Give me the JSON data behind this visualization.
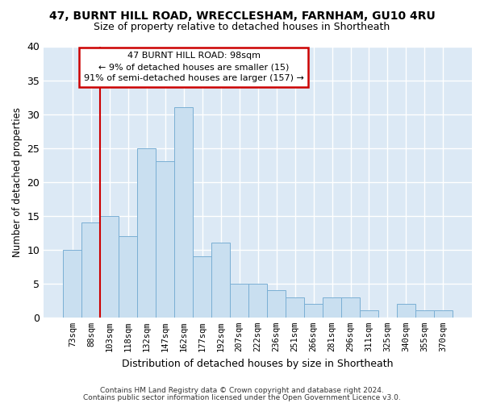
{
  "title1": "47, BURNT HILL ROAD, WRECCLESHAM, FARNHAM, GU10 4RU",
  "title2": "Size of property relative to detached houses in Shortheath",
  "xlabel": "Distribution of detached houses by size in Shortheath",
  "ylabel": "Number of detached properties",
  "categories": [
    "73sqm",
    "88sqm",
    "103sqm",
    "118sqm",
    "132sqm",
    "147sqm",
    "162sqm",
    "177sqm",
    "192sqm",
    "207sqm",
    "222sqm",
    "236sqm",
    "251sqm",
    "266sqm",
    "281sqm",
    "296sqm",
    "311sqm",
    "325sqm",
    "340sqm",
    "355sqm",
    "370sqm"
  ],
  "values": [
    10,
    14,
    15,
    12,
    25,
    23,
    31,
    9,
    11,
    5,
    5,
    4,
    3,
    2,
    3,
    3,
    1,
    0,
    2,
    1,
    1
  ],
  "bar_color": "#c9dff0",
  "bar_edge_color": "#7aafd4",
  "vline_x_index": 2,
  "vline_color": "#cc0000",
  "annotation_lines": [
    "47 BURNT HILL ROAD: 98sqm",
    "← 9% of detached houses are smaller (15)",
    "91% of semi-detached houses are larger (157) →"
  ],
  "annotation_box_color": "#ffffff",
  "annotation_box_edge_color": "#cc0000",
  "ylim": [
    0,
    40
  ],
  "yticks": [
    0,
    5,
    10,
    15,
    20,
    25,
    30,
    35,
    40
  ],
  "ax_background_color": "#dce9f5",
  "fig_background_color": "#ffffff",
  "grid_color": "#ffffff",
  "footer1": "Contains HM Land Registry data © Crown copyright and database right 2024.",
  "footer2": "Contains public sector information licensed under the Open Government Licence v3.0."
}
